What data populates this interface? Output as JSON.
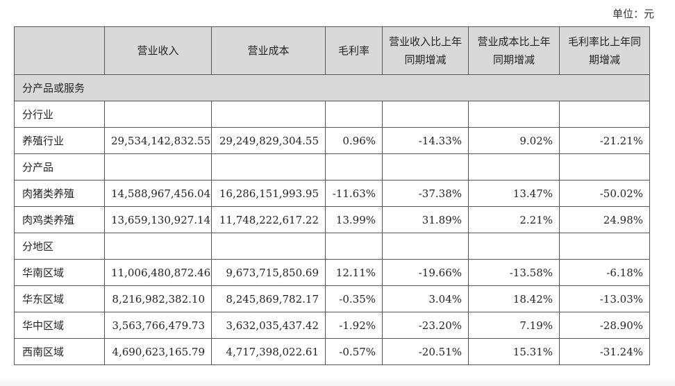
{
  "unit_label": "单位：元",
  "headers": [
    "",
    "营业收入",
    "营业成本",
    "毛利率",
    "营业收入比上年同期增减",
    "营业成本比上年同期增减",
    "毛利率比上年同期增减"
  ],
  "section_title": "分产品或服务",
  "rows": [
    {
      "label": "分行业",
      "cells": [
        "",
        "",
        "",
        "",
        "",
        ""
      ]
    },
    {
      "label": "养殖行业",
      "cells": [
        "29,534,142,832.55",
        "29,249,829,304.55",
        "0.96%",
        "-14.33%",
        "9.02%",
        "-21.21%"
      ]
    },
    {
      "label": "分产品",
      "cells": [
        "",
        "",
        "",
        "",
        "",
        ""
      ]
    },
    {
      "label": "肉猪类养殖",
      "cells": [
        "14,588,967,456.04",
        "16,286,151,993.95",
        "-11.63%",
        "-37.38%",
        "13.47%",
        "-50.02%"
      ]
    },
    {
      "label": "肉鸡类养殖",
      "cells": [
        "13,659,130,927.14",
        "11,748,222,617.22",
        "13.99%",
        "31.89%",
        "2.21%",
        "24.98%"
      ]
    },
    {
      "label": "分地区",
      "cells": [
        "",
        "",
        "",
        "",
        "",
        ""
      ]
    },
    {
      "label": "华南区域",
      "cells": [
        "11,006,480,872.46",
        "9,673,715,850.69",
        "12.11%",
        "-19.66%",
        "-13.58%",
        "-6.18%"
      ]
    },
    {
      "label": "华东区域",
      "cells": [
        "8,216,982,382.10",
        "8,245,869,782.17",
        "-0.35%",
        "3.04%",
        "18.42%",
        "-13.03%"
      ]
    },
    {
      "label": "华中区域",
      "cells": [
        "3,563,766,479.73",
        "3,632,035,437.42",
        "-1.92%",
        "-23.20%",
        "7.19%",
        "-28.90%"
      ]
    },
    {
      "label": "西南区域",
      "cells": [
        "4,690,623,165.79",
        "4,717,398,022.61",
        "-0.57%",
        "-20.51%",
        "15.31%",
        "-31.24%"
      ]
    }
  ]
}
